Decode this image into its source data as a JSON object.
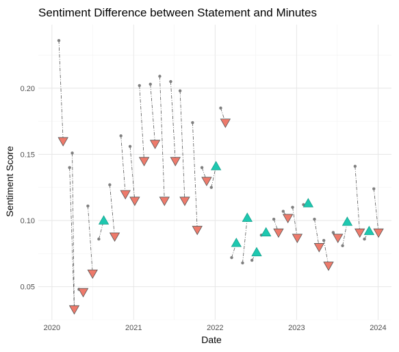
{
  "chart_data": {
    "type": "scatter",
    "title": "Sentiment Difference between Statement and Minutes",
    "xlabel": "Date",
    "ylabel": "Sentiment Score",
    "x_ticks": [
      "2020",
      "2021",
      "2022",
      "2023",
      "2024"
    ],
    "y_ticks": [
      "0.05",
      "0.10",
      "0.15",
      "0.20"
    ],
    "xlim": [
      "2019-11-01",
      "2024-03-01"
    ],
    "ylim": [
      0.025,
      0.248
    ],
    "grid": true,
    "legend": "none",
    "colors": {
      "statement": "#7f7f7f",
      "minutes_up": "#1ec8b0",
      "minutes_down": "#ee7a6b",
      "connector": "#555555"
    },
    "series": [
      {
        "values": [
          {
            "statement_date": "2020-02-01",
            "statement": 0.236,
            "minutes_date": "2020-02-20",
            "minutes": 0.16
          },
          {
            "statement_date": "2020-03-20",
            "statement": 0.14,
            "minutes_date": "2020-04-10",
            "minutes": 0.033
          },
          {
            "statement_date": "2020-04-01",
            "statement": 0.151,
            "minutes_date": "2020-04-10",
            "minutes": 0.033
          },
          {
            "statement_date": "2020-05-01",
            "statement": 0.048,
            "minutes_date": "2020-05-20",
            "minutes": 0.046
          },
          {
            "statement_date": "2020-06-10",
            "statement": 0.111,
            "minutes_date": "2020-07-01",
            "minutes": 0.06
          },
          {
            "statement_date": "2020-07-29",
            "statement": 0.086,
            "minutes_date": "2020-08-20",
            "minutes": 0.1
          },
          {
            "statement_date": "2020-09-16",
            "statement": 0.127,
            "minutes_date": "2020-10-08",
            "minutes": 0.088
          },
          {
            "statement_date": "2020-11-05",
            "statement": 0.164,
            "minutes_date": "2020-11-25",
            "minutes": 0.12
          },
          {
            "statement_date": "2020-12-16",
            "statement": 0.156,
            "minutes_date": "2021-01-06",
            "minutes": 0.115
          },
          {
            "statement_date": "2021-01-27",
            "statement": 0.202,
            "minutes_date": "2021-02-17",
            "minutes": 0.145
          },
          {
            "statement_date": "2021-03-17",
            "statement": 0.203,
            "minutes_date": "2021-04-07",
            "minutes": 0.158
          },
          {
            "statement_date": "2021-04-28",
            "statement": 0.209,
            "minutes_date": "2021-05-19",
            "minutes": 0.115
          },
          {
            "statement_date": "2021-06-16",
            "statement": 0.205,
            "minutes_date": "2021-07-07",
            "minutes": 0.145
          },
          {
            "statement_date": "2021-07-28",
            "statement": 0.198,
            "minutes_date": "2021-08-18",
            "minutes": 0.115
          },
          {
            "statement_date": "2021-09-22",
            "statement": 0.174,
            "minutes_date": "2021-10-13",
            "minutes": 0.093
          },
          {
            "statement_date": "2021-11-03",
            "statement": 0.14,
            "minutes_date": "2021-11-24",
            "minutes": 0.13
          },
          {
            "statement_date": "2021-12-15",
            "statement": 0.125,
            "minutes_date": "2022-01-05",
            "minutes": 0.141
          },
          {
            "statement_date": "2022-01-26",
            "statement": 0.185,
            "minutes_date": "2022-02-16",
            "minutes": 0.174
          },
          {
            "statement_date": "2022-03-16",
            "statement": 0.072,
            "minutes_date": "2022-04-06",
            "minutes": 0.083
          },
          {
            "statement_date": "2022-05-04",
            "statement": 0.068,
            "minutes_date": "2022-05-25",
            "minutes": 0.102
          },
          {
            "statement_date": "2022-06-15",
            "statement": 0.07,
            "minutes_date": "2022-07-06",
            "minutes": 0.076
          },
          {
            "statement_date": "2022-07-27",
            "statement": 0.089,
            "minutes_date": "2022-08-17",
            "minutes": 0.091
          },
          {
            "statement_date": "2022-09-21",
            "statement": 0.101,
            "minutes_date": "2022-10-12",
            "minutes": 0.091
          },
          {
            "statement_date": "2022-11-02",
            "statement": 0.107,
            "minutes_date": "2022-11-23",
            "minutes": 0.102
          },
          {
            "statement_date": "2022-12-14",
            "statement": 0.11,
            "minutes_date": "2023-01-04",
            "minutes": 0.087
          },
          {
            "statement_date": "2023-02-01",
            "statement": 0.112,
            "minutes_date": "2023-02-22",
            "minutes": 0.113
          },
          {
            "statement_date": "2023-03-22",
            "statement": 0.101,
            "minutes_date": "2023-04-12",
            "minutes": 0.08
          },
          {
            "statement_date": "2023-05-03",
            "statement": 0.085,
            "minutes_date": "2023-05-24",
            "minutes": 0.066
          },
          {
            "statement_date": "2023-06-14",
            "statement": 0.091,
            "minutes_date": "2023-07-05",
            "minutes": 0.087
          },
          {
            "statement_date": "2023-07-26",
            "statement": 0.081,
            "minutes_date": "2023-08-16",
            "minutes": 0.099
          },
          {
            "statement_date": "2023-09-20",
            "statement": 0.141,
            "minutes_date": "2023-10-11",
            "minutes": 0.091
          },
          {
            "statement_date": "2023-11-01",
            "statement": 0.086,
            "minutes_date": "2023-11-22",
            "minutes": 0.092
          },
          {
            "statement_date": "2023-12-13",
            "statement": 0.124,
            "minutes_date": "2024-01-03",
            "minutes": 0.091
          }
        ]
      }
    ]
  }
}
